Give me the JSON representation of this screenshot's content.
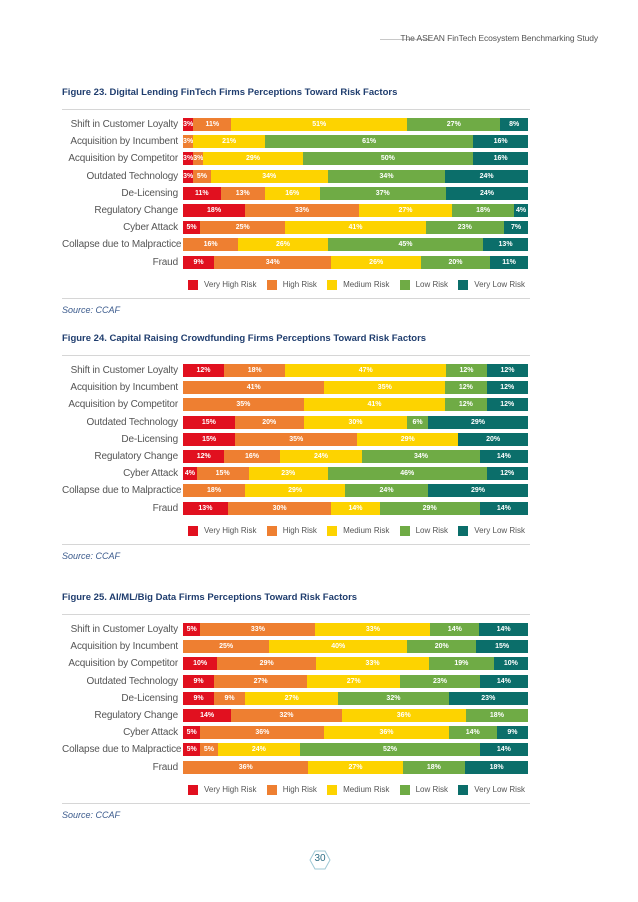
{
  "header": {
    "title": "The ASEAN FinTech Ecosystem  Benchmarking Study"
  },
  "legend": [
    {
      "label": "Very High Risk",
      "color": "#e1101f"
    },
    {
      "label": "High Risk",
      "color": "#ee7f31"
    },
    {
      "label": "Medium Risk",
      "color": "#fdd300"
    },
    {
      "label": "Low Risk",
      "color": "#6fab45"
    },
    {
      "label": "Very Low Risk",
      "color": "#0b6e6a"
    }
  ],
  "page_number": "30",
  "chart_data": [
    {
      "type": "bar",
      "orientation": "horizontal-stacked-100",
      "title": "Figure 23. Digital Lending FinTech Firms Perceptions Toward Risk Factors",
      "source": "Source: CCAF",
      "categories": [
        "Shift in Customer Loyalty",
        "Acquisition by Incumbent",
        "Acquisition by Competitor",
        "Outdated Technology",
        "De-Licensing",
        "Regulatory Change",
        "Cyber Attack",
        "Collapse due to Malpractice",
        "Fraud"
      ],
      "series": [
        {
          "name": "Very High Risk",
          "values": [
            3,
            0,
            3,
            3,
            11,
            18,
            5,
            0,
            9
          ]
        },
        {
          "name": "High Risk",
          "values": [
            11,
            3,
            3,
            5,
            13,
            33,
            25,
            16,
            34
          ]
        },
        {
          "name": "Medium Risk",
          "values": [
            51,
            21,
            29,
            34,
            16,
            27,
            41,
            26,
            26
          ]
        },
        {
          "name": "Low Risk",
          "values": [
            27,
            61,
            50,
            34,
            37,
            18,
            23,
            45,
            20
          ]
        },
        {
          "name": "Very Low Risk",
          "values": [
            8,
            16,
            16,
            24,
            24,
            4,
            7,
            13,
            11
          ]
        }
      ],
      "xlim": [
        0,
        100
      ],
      "unit": "%",
      "legend_position": "bottom"
    },
    {
      "type": "bar",
      "orientation": "horizontal-stacked-100",
      "title": "Figure 24. Capital Raising Crowdfunding Firms Perceptions Toward Risk Factors",
      "source": "Source: CCAF",
      "categories": [
        "Shift in Customer Loyalty",
        "Acquisition by Incumbent",
        "Acquisition by Competitor",
        "Outdated Technology",
        "De-Licensing",
        "Regulatory Change",
        "Cyber Attack",
        "Collapse due to Malpractice",
        "Fraud"
      ],
      "series": [
        {
          "name": "Very High Risk",
          "values": [
            12,
            0,
            0,
            15,
            15,
            12,
            4,
            0,
            13
          ]
        },
        {
          "name": "High Risk",
          "values": [
            18,
            41,
            35,
            20,
            35,
            16,
            15,
            18,
            30
          ]
        },
        {
          "name": "Medium Risk",
          "values": [
            47,
            35,
            41,
            30,
            29,
            24,
            23,
            29,
            14
          ]
        },
        {
          "name": "Low Risk",
          "values": [
            12,
            12,
            12,
            6,
            0,
            34,
            46,
            24,
            29
          ]
        },
        {
          "name": "Very Low Risk",
          "values": [
            12,
            12,
            12,
            29,
            20,
            14,
            12,
            29,
            14
          ]
        }
      ],
      "xlim": [
        0,
        100
      ],
      "unit": "%",
      "legend_position": "bottom"
    },
    {
      "type": "bar",
      "orientation": "horizontal-stacked-100",
      "title": "Figure 25. AI/ML/Big Data Firms Perceptions Toward Risk Factors",
      "source": "Source: CCAF",
      "categories": [
        "Shift in Customer Loyalty",
        "Acquisition by Incumbent",
        "Acquisition by Competitor",
        "Outdated Technology",
        "De-Licensing",
        "Regulatory Change",
        "Cyber Attack",
        "Collapse due to Malpractice",
        "Fraud"
      ],
      "series": [
        {
          "name": "Very High Risk",
          "values": [
            5,
            0,
            10,
            9,
            9,
            14,
            5,
            5,
            0
          ]
        },
        {
          "name": "High Risk",
          "values": [
            33,
            25,
            29,
            27,
            9,
            32,
            36,
            5,
            36
          ]
        },
        {
          "name": "Medium Risk",
          "values": [
            33,
            40,
            33,
            27,
            27,
            36,
            36,
            24,
            27
          ]
        },
        {
          "name": "Low Risk",
          "values": [
            14,
            20,
            19,
            23,
            32,
            18,
            14,
            52,
            18
          ]
        },
        {
          "name": "Very Low Risk",
          "values": [
            14,
            15,
            10,
            14,
            23,
            0,
            9,
            14,
            18
          ]
        }
      ],
      "xlim": [
        0,
        100
      ],
      "unit": "%",
      "legend_position": "bottom"
    }
  ]
}
